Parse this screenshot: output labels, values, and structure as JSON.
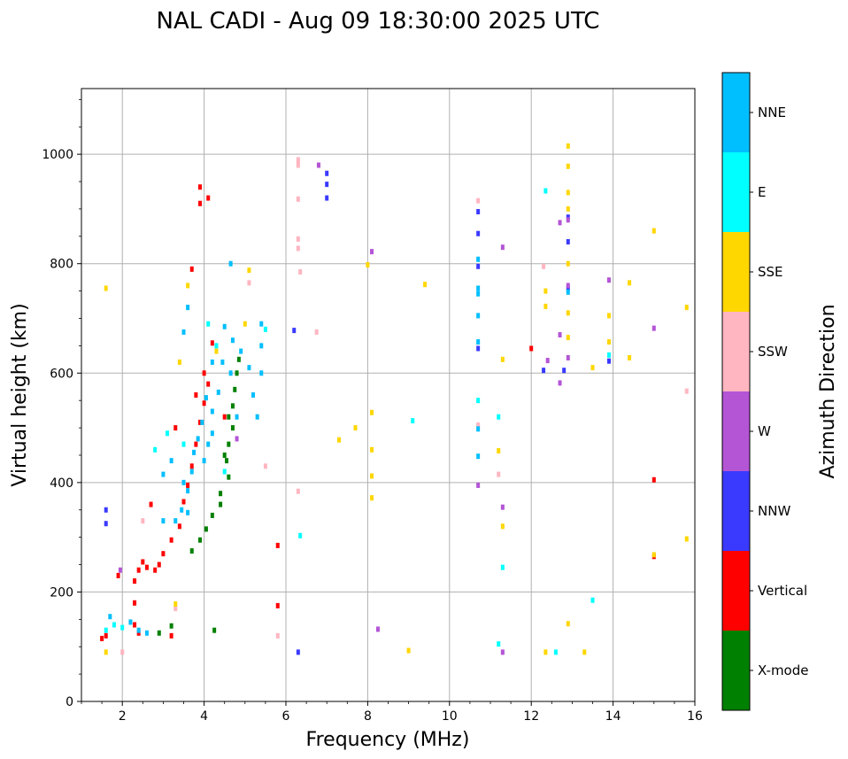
{
  "chart_data": {
    "type": "scatter",
    "title": "NAL CADI - Aug 09 18:30:00 2025 UTC",
    "xlabel": "Frequency (MHz)",
    "ylabel": "Virtual height (km)",
    "xlim": [
      1,
      16
    ],
    "ylim": [
      0,
      1120
    ],
    "xticks": [
      2,
      4,
      6,
      8,
      10,
      12,
      14,
      16
    ],
    "yticks": [
      0,
      200,
      400,
      600,
      800,
      1000
    ],
    "grid": true,
    "colorbar": {
      "title": "Azimuth Direction",
      "categories": [
        {
          "name": "X-mode",
          "color": "#008000"
        },
        {
          "name": "Vertical",
          "color": "#ff0000"
        },
        {
          "name": "NNW",
          "color": "#3a3aff"
        },
        {
          "name": "W",
          "color": "#b455d6"
        },
        {
          "name": "SSW",
          "color": "#ffb6c1"
        },
        {
          "name": "SSE",
          "color": "#ffd700"
        },
        {
          "name": "E",
          "color": "#00ffff"
        },
        {
          "name": "NNE",
          "color": "#00bfff"
        }
      ]
    },
    "series": [
      {
        "name": "X-mode",
        "points": [
          [
            3.7,
            275
          ],
          [
            3.9,
            295
          ],
          [
            4.05,
            315
          ],
          [
            4.2,
            340
          ],
          [
            4.4,
            360
          ],
          [
            4.4,
            380
          ],
          [
            4.6,
            410
          ],
          [
            4.55,
            440
          ],
          [
            4.6,
            470
          ],
          [
            4.7,
            500
          ],
          [
            4.7,
            540
          ],
          [
            4.75,
            570
          ],
          [
            4.8,
            600
          ],
          [
            4.85,
            625
          ],
          [
            4.25,
            130
          ],
          [
            3.2,
            138
          ],
          [
            2.9,
            125
          ],
          [
            4.5,
            450
          ],
          [
            4.6,
            520
          ]
        ]
      },
      {
        "name": "Vertical",
        "points": [
          [
            1.5,
            115
          ],
          [
            1.6,
            120
          ],
          [
            1.9,
            230
          ],
          [
            2.3,
            220
          ],
          [
            2.4,
            240
          ],
          [
            2.5,
            255
          ],
          [
            2.6,
            245
          ],
          [
            2.8,
            240
          ],
          [
            2.9,
            250
          ],
          [
            3.0,
            270
          ],
          [
            3.2,
            295
          ],
          [
            3.4,
            320
          ],
          [
            3.5,
            365
          ],
          [
            3.6,
            395
          ],
          [
            3.7,
            430
          ],
          [
            3.8,
            470
          ],
          [
            3.9,
            510
          ],
          [
            4.0,
            545
          ],
          [
            4.1,
            580
          ],
          [
            3.7,
            790
          ],
          [
            3.8,
            560
          ],
          [
            3.9,
            910
          ],
          [
            3.9,
            940
          ],
          [
            4.1,
            920
          ],
          [
            2.7,
            360
          ],
          [
            3.3,
            500
          ],
          [
            4.2,
            655
          ],
          [
            2.3,
            180
          ],
          [
            2.4,
            125
          ],
          [
            3.2,
            120
          ],
          [
            5.8,
            175
          ],
          [
            5.8,
            285
          ],
          [
            12.0,
            645
          ],
          [
            15.0,
            265
          ],
          [
            15.0,
            405
          ],
          [
            2.3,
            140
          ],
          [
            4.0,
            600
          ],
          [
            4.5,
            520
          ]
        ]
      },
      {
        "name": "NNW",
        "points": [
          [
            1.6,
            350
          ],
          [
            1.6,
            325
          ],
          [
            7.0,
            965
          ],
          [
            7.0,
            945
          ],
          [
            7.0,
            920
          ],
          [
            10.7,
            855
          ],
          [
            10.7,
            795
          ],
          [
            10.7,
            645
          ],
          [
            10.7,
            895
          ],
          [
            12.3,
            605
          ],
          [
            12.8,
            605
          ],
          [
            12.9,
            755
          ],
          [
            12.9,
            840
          ],
          [
            12.9,
            885
          ],
          [
            13.9,
            622
          ],
          [
            6.3,
            90
          ],
          [
            6.2,
            678
          ]
        ]
      },
      {
        "name": "W",
        "points": [
          [
            1.95,
            240
          ],
          [
            6.8,
            980
          ],
          [
            8.1,
            822
          ],
          [
            8.25,
            132
          ],
          [
            11.3,
            830
          ],
          [
            10.7,
            395
          ],
          [
            11.3,
            355
          ],
          [
            11.3,
            90
          ],
          [
            12.7,
            670
          ],
          [
            12.7,
            582
          ],
          [
            12.9,
            628
          ],
          [
            12.9,
            760
          ],
          [
            12.9,
            880
          ],
          [
            12.7,
            875
          ],
          [
            13.9,
            770
          ],
          [
            15.0,
            682
          ],
          [
            12.4,
            623
          ],
          [
            4.8,
            480
          ]
        ]
      },
      {
        "name": "SSW",
        "points": [
          [
            6.3,
            990
          ],
          [
            6.3,
            985
          ],
          [
            6.3,
            980
          ],
          [
            6.3,
            918
          ],
          [
            6.3,
            845
          ],
          [
            6.3,
            828
          ],
          [
            6.35,
            785
          ],
          [
            6.75,
            675
          ],
          [
            6.3,
            384
          ],
          [
            5.5,
            430
          ],
          [
            5.8,
            120
          ],
          [
            2.0,
            90
          ],
          [
            10.7,
            915
          ],
          [
            10.7,
            505
          ],
          [
            11.2,
            415
          ],
          [
            12.3,
            795
          ],
          [
            15.8,
            567
          ],
          [
            5.1,
            765
          ],
          [
            2.5,
            330
          ],
          [
            3.3,
            170
          ]
        ]
      },
      {
        "name": "SSE",
        "points": [
          [
            1.6,
            755
          ],
          [
            1.6,
            90
          ],
          [
            3.4,
            620
          ],
          [
            3.6,
            760
          ],
          [
            4.3,
            640
          ],
          [
            5.1,
            788
          ],
          [
            5.0,
            690
          ],
          [
            7.3,
            478
          ],
          [
            7.7,
            500
          ],
          [
            8.1,
            528
          ],
          [
            8.1,
            460
          ],
          [
            8.1,
            412
          ],
          [
            8.1,
            372
          ],
          [
            8.0,
            798
          ],
          [
            9.4,
            762
          ],
          [
            9.0,
            93
          ],
          [
            11.2,
            458
          ],
          [
            11.3,
            625
          ],
          [
            11.3,
            320
          ],
          [
            12.35,
            90
          ],
          [
            12.35,
            750
          ],
          [
            12.35,
            722
          ],
          [
            12.9,
            1015
          ],
          [
            12.9,
            978
          ],
          [
            12.9,
            930
          ],
          [
            12.9,
            900
          ],
          [
            12.9,
            800
          ],
          [
            12.9,
            710
          ],
          [
            12.9,
            665
          ],
          [
            12.9,
            142
          ],
          [
            13.3,
            90
          ],
          [
            13.5,
            610
          ],
          [
            13.9,
            705
          ],
          [
            13.9,
            657
          ],
          [
            14.4,
            765
          ],
          [
            14.4,
            628
          ],
          [
            15.0,
            860
          ],
          [
            15.0,
            268
          ],
          [
            15.8,
            720
          ],
          [
            15.8,
            297
          ],
          [
            3.3,
            178
          ]
        ]
      },
      {
        "name": "E",
        "points": [
          [
            1.6,
            130
          ],
          [
            1.8,
            140
          ],
          [
            2.8,
            460
          ],
          [
            3.1,
            490
          ],
          [
            3.5,
            470
          ],
          [
            4.1,
            690
          ],
          [
            4.3,
            650
          ],
          [
            4.5,
            420
          ],
          [
            5.5,
            680
          ],
          [
            6.35,
            303
          ],
          [
            9.1,
            513
          ],
          [
            10.7,
            550
          ],
          [
            11.2,
            520
          ],
          [
            11.3,
            245
          ],
          [
            11.2,
            105
          ],
          [
            12.35,
            933
          ],
          [
            12.6,
            90
          ],
          [
            13.9,
            633
          ],
          [
            13.5,
            185
          ],
          [
            2.0,
            135
          ]
        ]
      },
      {
        "name": "NNE",
        "points": [
          [
            1.7,
            155
          ],
          [
            2.2,
            145
          ],
          [
            2.4,
            130
          ],
          [
            2.6,
            125
          ],
          [
            3.0,
            330
          ],
          [
            3.3,
            330
          ],
          [
            3.45,
            350
          ],
          [
            3.5,
            400
          ],
          [
            3.6,
            385
          ],
          [
            3.6,
            345
          ],
          [
            3.7,
            420
          ],
          [
            3.75,
            455
          ],
          [
            3.85,
            480
          ],
          [
            3.95,
            510
          ],
          [
            4.05,
            555
          ],
          [
            4.2,
            530
          ],
          [
            4.35,
            565
          ],
          [
            4.2,
            490
          ],
          [
            4.2,
            620
          ],
          [
            4.45,
            620
          ],
          [
            4.65,
            600
          ],
          [
            4.5,
            685
          ],
          [
            4.7,
            660
          ],
          [
            4.9,
            640
          ],
          [
            5.1,
            610
          ],
          [
            5.2,
            560
          ],
          [
            5.3,
            520
          ],
          [
            5.4,
            600
          ],
          [
            5.4,
            650
          ],
          [
            5.4,
            690
          ],
          [
            3.5,
            675
          ],
          [
            3.6,
            720
          ],
          [
            4.65,
            800
          ],
          [
            10.7,
            755
          ],
          [
            10.7,
            745
          ],
          [
            10.7,
            705
          ],
          [
            10.7,
            808
          ],
          [
            10.7,
            657
          ],
          [
            10.7,
            448
          ],
          [
            10.7,
            498
          ],
          [
            12.9,
            748
          ],
          [
            3.0,
            415
          ],
          [
            3.2,
            440
          ],
          [
            4.0,
            440
          ],
          [
            4.1,
            470
          ],
          [
            4.8,
            520
          ]
        ]
      }
    ]
  }
}
